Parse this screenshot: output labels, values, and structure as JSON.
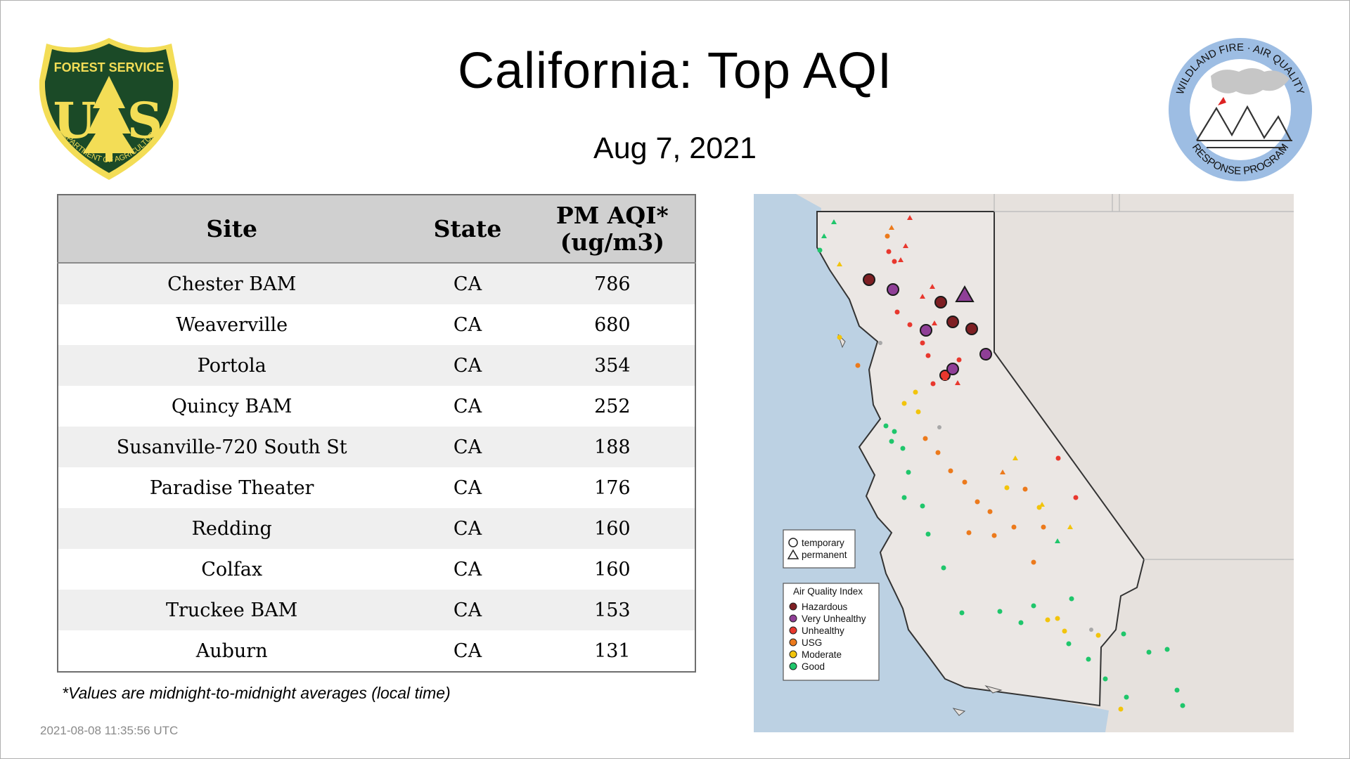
{
  "header": {
    "title": "California: Top AQI",
    "date": "Aug  7, 2021",
    "logos": {
      "forest_service": {
        "top_text": "FOREST SERVICE",
        "letters": "U S",
        "bottom_text": "DEPARTMENT OF AGRICULTURE"
      },
      "wildland_fire": {
        "top_text": "WILDLAND FIRE · AIR QUALITY",
        "bottom_text": "RESPONSE PROGRAM"
      }
    }
  },
  "table": {
    "headers": {
      "site": "Site",
      "state": "State",
      "aqi_line1": "PM AQI*",
      "aqi_line2": "(ug/m3)"
    },
    "rows": [
      {
        "site": "Chester BAM",
        "state": "CA",
        "aqi": "786"
      },
      {
        "site": "Weaverville",
        "state": "CA",
        "aqi": "680"
      },
      {
        "site": "Portola",
        "state": "CA",
        "aqi": "354"
      },
      {
        "site": "Quincy BAM",
        "state": "CA",
        "aqi": "252"
      },
      {
        "site": "Susanville-720 South St",
        "state": "CA",
        "aqi": "188"
      },
      {
        "site": "Paradise Theater",
        "state": "CA",
        "aqi": "176"
      },
      {
        "site": "Redding",
        "state": "CA",
        "aqi": "160"
      },
      {
        "site": "Colfax",
        "state": "CA",
        "aqi": "160"
      },
      {
        "site": "Truckee BAM",
        "state": "CA",
        "aqi": "153"
      },
      {
        "site": "Auburn",
        "state": "CA",
        "aqi": "131"
      }
    ]
  },
  "footnote": "*Values are midnight-to-midnight averages (local time)",
  "timestamp": "2021-08-08 11:35:56 UTC",
  "map": {
    "shape_legend": [
      {
        "shape": "circle",
        "label": "temporary"
      },
      {
        "shape": "triangle",
        "label": "permanent"
      }
    ],
    "aqi_legend": {
      "title": "Air Quality Index",
      "categories": [
        {
          "label": "Hazardous",
          "color": "#7e1f23"
        },
        {
          "label": "Very Unhealthy",
          "color": "#8f3f97"
        },
        {
          "label": "Unhealthy",
          "color": "#e8382e"
        },
        {
          "label": "USG",
          "color": "#ec7a1c"
        },
        {
          "label": "Moderate",
          "color": "#f2c40c"
        },
        {
          "label": "Good",
          "color": "#1fc66b"
        }
      ]
    }
  }
}
